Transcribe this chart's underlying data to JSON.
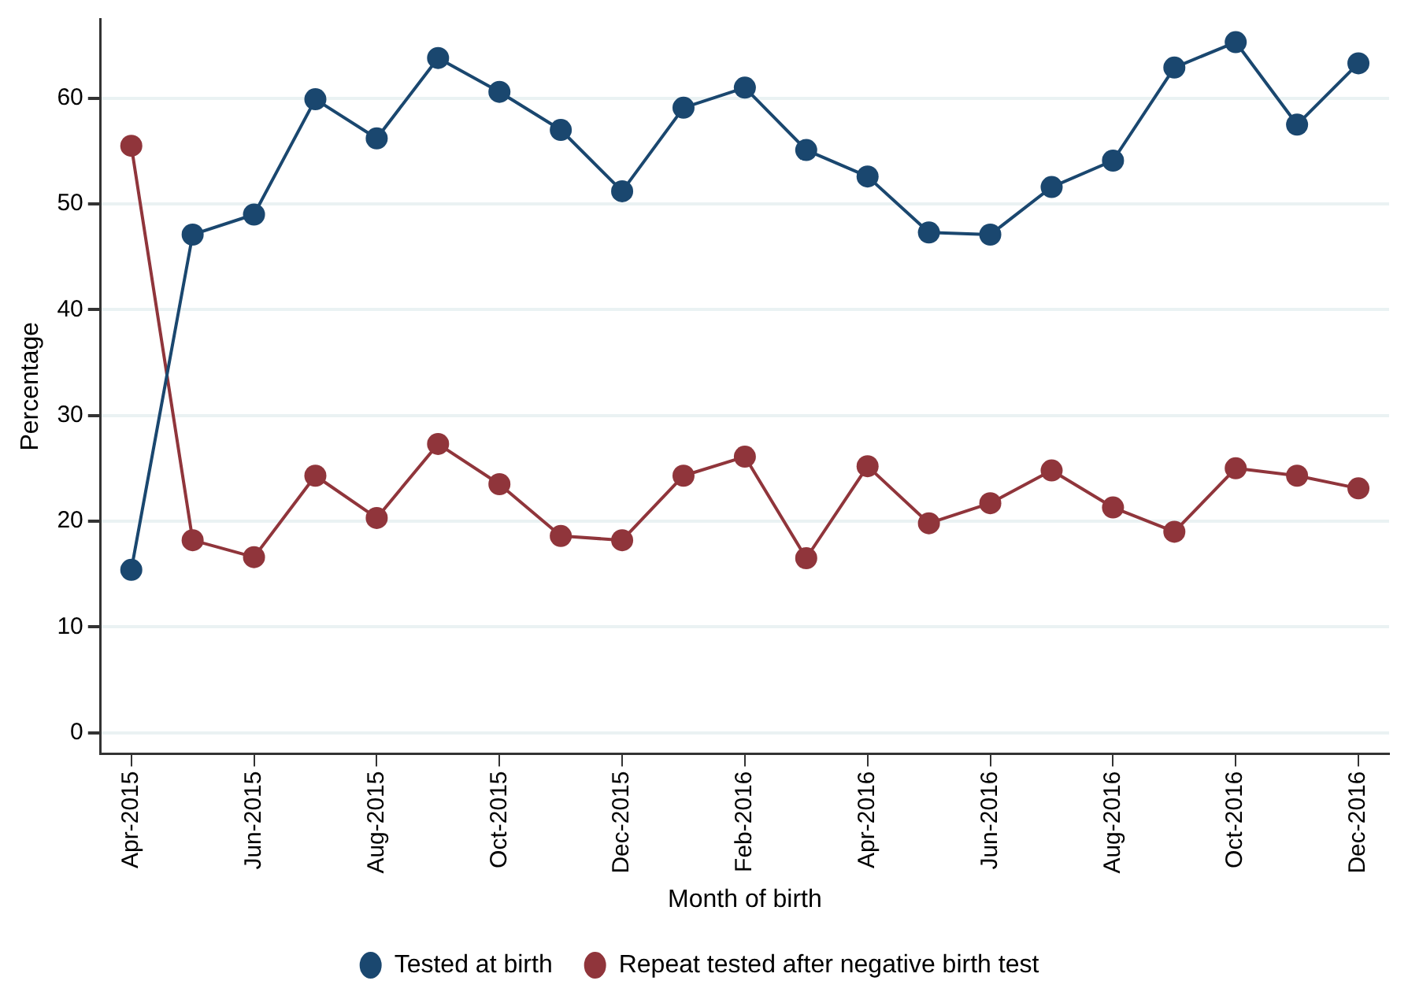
{
  "chart_data": {
    "type": "line",
    "xlabel": "Month of birth",
    "ylabel": "Percentage",
    "categories": [
      "Apr-2015",
      null,
      "Jun-2015",
      null,
      "Aug-2015",
      null,
      "Oct-2015",
      null,
      "Dec-2015",
      null,
      "Feb-2016",
      null,
      "Apr-2016",
      null,
      "Jun-2016",
      null,
      "Aug-2016",
      null,
      "Oct-2016",
      null,
      "Dec-2016"
    ],
    "series": [
      {
        "name": "Tested at birth",
        "color": "#1a476f",
        "values": [
          15.4,
          47.1,
          49.0,
          59.9,
          56.2,
          63.8,
          60.6,
          57.0,
          51.2,
          59.1,
          61.0,
          55.1,
          52.6,
          47.3,
          47.1,
          51.6,
          54.1,
          62.9,
          65.3,
          57.5,
          63.3
        ]
      },
      {
        "name": "Repeat tested after negative birth test",
        "color": "#90353b",
        "values": [
          55.5,
          18.2,
          16.6,
          24.3,
          20.3,
          27.3,
          23.5,
          18.6,
          18.2,
          24.3,
          26.1,
          16.5,
          25.2,
          19.8,
          21.7,
          24.8,
          21.3,
          19.0,
          25.0,
          24.3,
          23.1
        ]
      }
    ],
    "ylim": [
      -2,
      67.5
    ],
    "yticks": [
      0,
      10,
      20,
      30,
      40,
      50,
      60
    ],
    "grid": "y",
    "legend": "bottom",
    "marker": "circle",
    "line_style": "solid"
  }
}
